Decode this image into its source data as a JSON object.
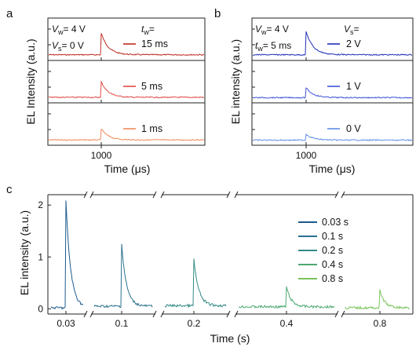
{
  "chart_data": [
    {
      "panel": "a",
      "type": "line",
      "xlabel": "Time (μs)",
      "ylabel": "EL Intensity (a.u.)",
      "x_ticks": [
        "1000"
      ],
      "annotations": {
        "vw_sym": "V",
        "vw_sub": "w",
        "vw_val": "= 4 V",
        "vs_sym": "V",
        "vs_sub": "s",
        "vs_val": "= 0 V",
        "tw_sym": "t",
        "tw_sub": "w",
        "tw_val": "="
      },
      "series": [
        {
          "name": "15 ms",
          "color": "#c0281f",
          "peak": 0.75,
          "baseline": 0.1
        },
        {
          "name": "5 ms",
          "color": "#e04a44",
          "peak": 0.55,
          "baseline": 0.08
        },
        {
          "name": "1 ms",
          "color": "#f08a5a",
          "peak": 0.4,
          "baseline": 0.06
        }
      ]
    },
    {
      "panel": "b",
      "type": "line",
      "xlabel": "Time (μs)",
      "ylabel": "EL intensity (a.u.)",
      "x_ticks": [
        "1000"
      ],
      "annotations": {
        "vw_sym": "V",
        "vw_sub": "w",
        "vw_val": "= 4 V",
        "tw_sym": "t",
        "tw_sub": "w",
        "tw_val": "= 5 ms",
        "vs_sym": "V",
        "vs_sub": "s",
        "vs_val": "="
      },
      "series": [
        {
          "name": "2 V",
          "color": "#1f2fb8",
          "peak": 0.8,
          "baseline": 0.1
        },
        {
          "name": "1 V",
          "color": "#3f55d8",
          "peak": 0.35,
          "baseline": 0.05
        },
        {
          "name": "0 V",
          "color": "#5f8ee6",
          "peak": 0.22,
          "baseline": 0.04
        }
      ]
    },
    {
      "panel": "c",
      "type": "line",
      "xlabel": "Time (s)",
      "ylabel": "EL intensity (a.u.)",
      "y_ticks": [
        0,
        1,
        2
      ],
      "ylim": [
        -0.1,
        2.2
      ],
      "x_ticks": [
        "0.03",
        "0.1",
        "0.2",
        "0.4",
        "0.8"
      ],
      "series": [
        {
          "name": "0.03 s",
          "color": "#1c5a8e",
          "peak": 2.08,
          "baseline": 0.02
        },
        {
          "name": "0.1 s",
          "color": "#2a718e",
          "peak": 1.25,
          "baseline": 0.05
        },
        {
          "name": "0.2 s",
          "color": "#338a86",
          "peak": 0.95,
          "baseline": 0.06
        },
        {
          "name": "0.4 s",
          "color": "#4ca872",
          "peak": 0.42,
          "baseline": 0.04
        },
        {
          "name": "0.8 s",
          "color": "#78c45c",
          "peak": 0.35,
          "baseline": 0.02
        }
      ]
    }
  ]
}
